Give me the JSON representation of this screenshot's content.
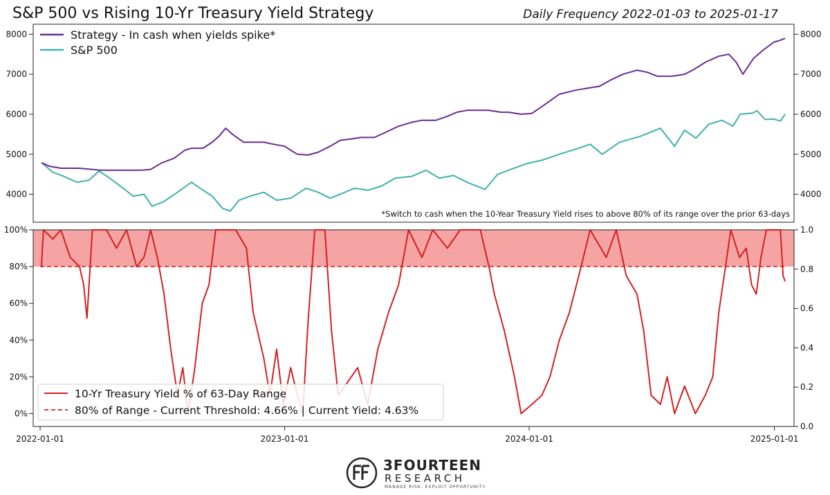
{
  "chart_data": [
    {
      "type": "line",
      "title": "S&P 500 vs Rising 10-Yr Treasury Yield Strategy",
      "subtitle": "Daily Frequency 2022-01-03 to 2025-01-17",
      "ylim": [
        3300,
        8250
      ],
      "yticks": [
        4000,
        5000,
        6000,
        7000,
        8000
      ],
      "xlim": [
        "2022-01-01",
        "2025-01-20"
      ],
      "legend_position": "top-left",
      "footnote": "*Switch to cash when the 10-Year Treasury Yield rises to above 80% of its range over the prior 63-days",
      "series": [
        {
          "name": "Strategy - In cash when yields spike*",
          "color": "#6a2c91",
          "points": [
            [
              "2022-01-03",
              4790
            ],
            [
              "2022-01-15",
              4700
            ],
            [
              "2022-02-01",
              4650
            ],
            [
              "2022-03-01",
              4650
            ],
            [
              "2022-04-01",
              4600
            ],
            [
              "2022-05-01",
              4600
            ],
            [
              "2022-06-01",
              4600
            ],
            [
              "2022-06-15",
              4620
            ],
            [
              "2022-07-01",
              4780
            ],
            [
              "2022-07-20",
              4900
            ],
            [
              "2022-08-05",
              5100
            ],
            [
              "2022-08-15",
              5150
            ],
            [
              "2022-09-01",
              5150
            ],
            [
              "2022-09-15",
              5300
            ],
            [
              "2022-09-25",
              5450
            ],
            [
              "2022-10-05",
              5650
            ],
            [
              "2022-10-15",
              5500
            ],
            [
              "2022-10-25",
              5380
            ],
            [
              "2022-11-01",
              5300
            ],
            [
              "2022-12-01",
              5300
            ],
            [
              "2022-12-15",
              5250
            ],
            [
              "2023-01-01",
              5200
            ],
            [
              "2023-01-10",
              5100
            ],
            [
              "2023-01-20",
              5000
            ],
            [
              "2023-02-05",
              4980
            ],
            [
              "2023-02-20",
              5050
            ],
            [
              "2023-03-10",
              5200
            ],
            [
              "2023-03-25",
              5350
            ],
            [
              "2023-04-10",
              5380
            ],
            [
              "2023-04-25",
              5420
            ],
            [
              "2023-05-15",
              5420
            ],
            [
              "2023-06-01",
              5550
            ],
            [
              "2023-06-20",
              5700
            ],
            [
              "2023-07-10",
              5800
            ],
            [
              "2023-07-25",
              5850
            ],
            [
              "2023-08-15",
              5850
            ],
            [
              "2023-09-01",
              5950
            ],
            [
              "2023-09-15",
              6050
            ],
            [
              "2023-10-01",
              6100
            ],
            [
              "2023-11-01",
              6100
            ],
            [
              "2023-11-20",
              6050
            ],
            [
              "2023-12-01",
              6050
            ],
            [
              "2023-12-20",
              6000
            ],
            [
              "2024-01-05",
              6020
            ],
            [
              "2024-01-25",
              6250
            ],
            [
              "2024-02-15",
              6500
            ],
            [
              "2024-03-10",
              6600
            ],
            [
              "2024-03-28",
              6650
            ],
            [
              "2024-04-15",
              6700
            ],
            [
              "2024-05-01",
              6850
            ],
            [
              "2024-05-20",
              7000
            ],
            [
              "2024-06-10",
              7100
            ],
            [
              "2024-06-25",
              7050
            ],
            [
              "2024-07-10",
              6950
            ],
            [
              "2024-08-01",
              6950
            ],
            [
              "2024-08-20",
              7000
            ],
            [
              "2024-09-01",
              7100
            ],
            [
              "2024-09-20",
              7300
            ],
            [
              "2024-10-10",
              7450
            ],
            [
              "2024-10-25",
              7500
            ],
            [
              "2024-11-05",
              7300
            ],
            [
              "2024-11-15",
              7000
            ],
            [
              "2024-12-01",
              7400
            ],
            [
              "2024-12-15",
              7600
            ],
            [
              "2024-12-31",
              7800
            ],
            [
              "2025-01-10",
              7850
            ],
            [
              "2025-01-17",
              7900
            ]
          ]
        },
        {
          "name": "S&P 500",
          "color": "#3fb0ad",
          "points": [
            [
              "2022-01-03",
              4790
            ],
            [
              "2022-01-20",
              4550
            ],
            [
              "2022-02-05",
              4450
            ],
            [
              "2022-02-25",
              4300
            ],
            [
              "2022-03-15",
              4350
            ],
            [
              "2022-03-30",
              4580
            ],
            [
              "2022-04-15",
              4400
            ],
            [
              "2022-05-05",
              4150
            ],
            [
              "2022-05-20",
              3950
            ],
            [
              "2022-06-05",
              4000
            ],
            [
              "2022-06-17",
              3700
            ],
            [
              "2022-07-05",
              3820
            ],
            [
              "2022-07-25",
              4050
            ],
            [
              "2022-08-15",
              4300
            ],
            [
              "2022-08-25",
              4180
            ],
            [
              "2022-09-15",
              3950
            ],
            [
              "2022-09-30",
              3650
            ],
            [
              "2022-10-12",
              3580
            ],
            [
              "2022-10-25",
              3850
            ],
            [
              "2022-11-10",
              3950
            ],
            [
              "2022-12-01",
              4050
            ],
            [
              "2022-12-20",
              3850
            ],
            [
              "2023-01-10",
              3900
            ],
            [
              "2023-02-02",
              4150
            ],
            [
              "2023-02-20",
              4050
            ],
            [
              "2023-03-10",
              3900
            ],
            [
              "2023-03-25",
              4000
            ],
            [
              "2023-04-15",
              4150
            ],
            [
              "2023-05-05",
              4100
            ],
            [
              "2023-05-25",
              4200
            ],
            [
              "2023-06-15",
              4400
            ],
            [
              "2023-07-10",
              4450
            ],
            [
              "2023-07-31",
              4600
            ],
            [
              "2023-08-20",
              4400
            ],
            [
              "2023-09-10",
              4470
            ],
            [
              "2023-09-30",
              4300
            ],
            [
              "2023-10-27",
              4120
            ],
            [
              "2023-11-15",
              4500
            ],
            [
              "2023-12-01",
              4600
            ],
            [
              "2023-12-29",
              4770
            ],
            [
              "2024-01-20",
              4850
            ],
            [
              "2024-02-15",
              5000
            ],
            [
              "2024-03-15",
              5150
            ],
            [
              "2024-04-01",
              5250
            ],
            [
              "2024-04-19",
              5000
            ],
            [
              "2024-05-15",
              5300
            ],
            [
              "2024-06-15",
              5450
            ],
            [
              "2024-07-15",
              5650
            ],
            [
              "2024-08-05",
              5200
            ],
            [
              "2024-08-20",
              5600
            ],
            [
              "2024-09-06",
              5400
            ],
            [
              "2024-09-25",
              5750
            ],
            [
              "2024-10-15",
              5850
            ],
            [
              "2024-10-31",
              5700
            ],
            [
              "2024-11-11",
              6000
            ],
            [
              "2024-11-30",
              6030
            ],
            [
              "2024-12-06",
              6090
            ],
            [
              "2024-12-18",
              5870
            ],
            [
              "2024-12-31",
              5880
            ],
            [
              "2025-01-10",
              5830
            ],
            [
              "2025-01-17",
              6000
            ]
          ]
        }
      ]
    },
    {
      "type": "line",
      "ylim": [
        -0.07,
        1.0
      ],
      "yticks_left": [
        "0%",
        "20%",
        "40%",
        "60%",
        "80%",
        "100%"
      ],
      "yticks_left_values": [
        0,
        0.2,
        0.4,
        0.6,
        0.8,
        1.0
      ],
      "yticks_right": [
        "0.0",
        "0.2",
        "0.4",
        "0.6",
        "0.8",
        "1.0"
      ],
      "xticks": [
        "2022-01-01",
        "2023-01-01",
        "2024-01-01",
        "2025-01-01"
      ],
      "xlim": [
        "2022-01-01",
        "2025-01-20"
      ],
      "legend_position": "bottom-left",
      "threshold": 0.8,
      "band": [
        0.8,
        1.0
      ],
      "band_color": "#f5a3a3",
      "series": [
        {
          "name": "10-Yr Treasury Yield % of 63-Day Range",
          "color": "#d42020",
          "points": [
            [
              "2022-01-03",
              0.8
            ],
            [
              "2022-01-06",
              1.0
            ],
            [
              "2022-01-20",
              0.95
            ],
            [
              "2022-02-01",
              1.0
            ],
            [
              "2022-02-15",
              0.85
            ],
            [
              "2022-03-01",
              0.8
            ],
            [
              "2022-03-07",
              0.7
            ],
            [
              "2022-03-12",
              0.52
            ],
            [
              "2022-03-20",
              1.0
            ],
            [
              "2022-04-10",
              1.0
            ],
            [
              "2022-04-25",
              0.9
            ],
            [
              "2022-05-10",
              1.0
            ],
            [
              "2022-05-25",
              0.8
            ],
            [
              "2022-06-05",
              0.85
            ],
            [
              "2022-06-15",
              1.0
            ],
            [
              "2022-06-25",
              0.85
            ],
            [
              "2022-07-05",
              0.65
            ],
            [
              "2022-07-15",
              0.35
            ],
            [
              "2022-07-25",
              0.1
            ],
            [
              "2022-08-02",
              0.25
            ],
            [
              "2022-08-10",
              0.0
            ],
            [
              "2022-08-20",
              0.25
            ],
            [
              "2022-08-31",
              0.6
            ],
            [
              "2022-09-10",
              0.7
            ],
            [
              "2022-09-20",
              1.0
            ],
            [
              "2022-10-20",
              1.0
            ],
            [
              "2022-11-05",
              0.9
            ],
            [
              "2022-11-15",
              0.55
            ],
            [
              "2022-12-01",
              0.3
            ],
            [
              "2022-12-10",
              0.1
            ],
            [
              "2022-12-20",
              0.35
            ],
            [
              "2022-12-30",
              0.05
            ],
            [
              "2023-01-10",
              0.25
            ],
            [
              "2023-01-20",
              0.1
            ],
            [
              "2023-01-28",
              0.0
            ],
            [
              "2023-02-05",
              0.5
            ],
            [
              "2023-02-15",
              1.0
            ],
            [
              "2023-03-02",
              1.0
            ],
            [
              "2023-03-12",
              0.45
            ],
            [
              "2023-03-22",
              0.1
            ],
            [
              "2023-04-01",
              0.15
            ],
            [
              "2023-04-20",
              0.25
            ],
            [
              "2023-05-05",
              0.05
            ],
            [
              "2023-05-20",
              0.35
            ],
            [
              "2023-06-05",
              0.55
            ],
            [
              "2023-06-20",
              0.7
            ],
            [
              "2023-07-05",
              1.0
            ],
            [
              "2023-07-25",
              0.85
            ],
            [
              "2023-08-10",
              1.0
            ],
            [
              "2023-09-01",
              0.9
            ],
            [
              "2023-09-20",
              1.0
            ],
            [
              "2023-10-20",
              1.0
            ],
            [
              "2023-11-02",
              0.8
            ],
            [
              "2023-11-10",
              0.65
            ],
            [
              "2023-11-25",
              0.45
            ],
            [
              "2023-12-10",
              0.2
            ],
            [
              "2023-12-20",
              0.0
            ],
            [
              "2024-01-05",
              0.05
            ],
            [
              "2024-01-20",
              0.1
            ],
            [
              "2024-02-01",
              0.2
            ],
            [
              "2024-02-15",
              0.4
            ],
            [
              "2024-03-01",
              0.55
            ],
            [
              "2024-03-15",
              0.75
            ],
            [
              "2024-04-01",
              1.0
            ],
            [
              "2024-04-25",
              0.85
            ],
            [
              "2024-05-10",
              1.0
            ],
            [
              "2024-05-25",
              0.75
            ],
            [
              "2024-06-10",
              0.65
            ],
            [
              "2024-06-20",
              0.45
            ],
            [
              "2024-07-01",
              0.1
            ],
            [
              "2024-07-15",
              0.05
            ],
            [
              "2024-07-25",
              0.2
            ],
            [
              "2024-08-05",
              0.0
            ],
            [
              "2024-08-20",
              0.15
            ],
            [
              "2024-09-05",
              0.0
            ],
            [
              "2024-09-20",
              0.1
            ],
            [
              "2024-10-01",
              0.2
            ],
            [
              "2024-10-10",
              0.55
            ],
            [
              "2024-10-20",
              0.8
            ],
            [
              "2024-10-28",
              1.0
            ],
            [
              "2024-11-10",
              0.85
            ],
            [
              "2024-11-20",
              0.9
            ],
            [
              "2024-11-28",
              0.7
            ],
            [
              "2024-12-05",
              0.65
            ],
            [
              "2024-12-12",
              0.85
            ],
            [
              "2024-12-20",
              1.0
            ],
            [
              "2025-01-10",
              1.0
            ],
            [
              "2025-01-14",
              0.75
            ],
            [
              "2025-01-17",
              0.72
            ]
          ]
        },
        {
          "name": "80% of Range - Current Threshold: 4.66% | Current Yield: 4.63%",
          "color": "#d42020",
          "dashed": true,
          "constant": 0.8
        }
      ]
    }
  ],
  "logo": {
    "name": "3FOURTEEN",
    "sub": "RESEARCH",
    "tagline": "MANAGE RISK. EXPLOIT OPPORTUNITY."
  }
}
